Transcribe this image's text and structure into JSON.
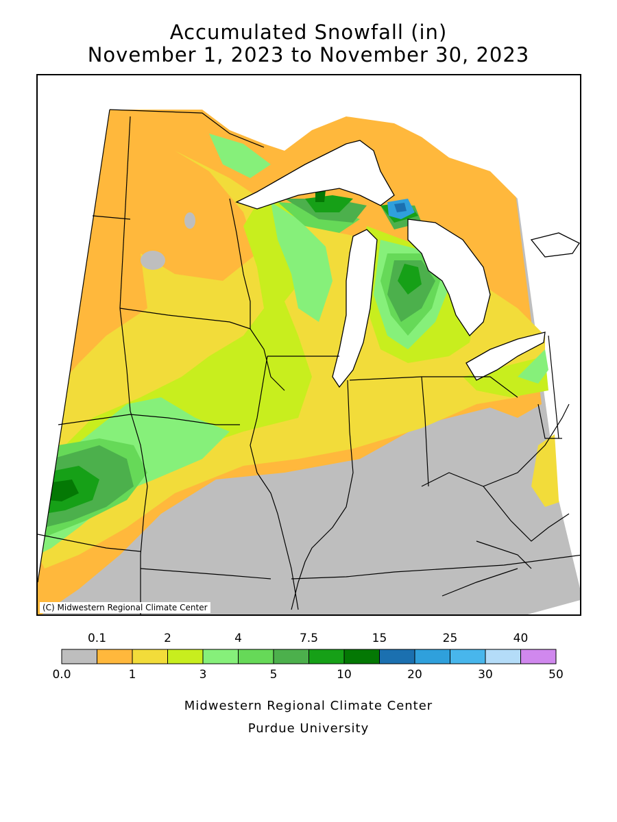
{
  "title_line1": "Accumulated Snowfall (in)",
  "title_line2": "November 1, 2023 to November 30, 2023",
  "copyright": "(C) Midwestern Regional Climate Center",
  "legend": {
    "upper_labels": [
      "0.1",
      "2",
      "4",
      "7.5",
      "15",
      "25",
      "40"
    ],
    "lower_labels": [
      "0.0",
      "1",
      "3",
      "5",
      "10",
      "20",
      "30",
      "50"
    ],
    "colors": [
      "#bebebe",
      "#ffb83c",
      "#f2dc3a",
      "#c8ee1e",
      "#86f07a",
      "#66d958",
      "#4cb04c",
      "#16a017",
      "#047804",
      "#1b70b0",
      "#2fa0dc",
      "#48b6ec",
      "#b4dcf8",
      "#d088ee"
    ]
  },
  "footer_line1": "Midwestern Regional Climate Center",
  "footer_line2": "Purdue University"
}
